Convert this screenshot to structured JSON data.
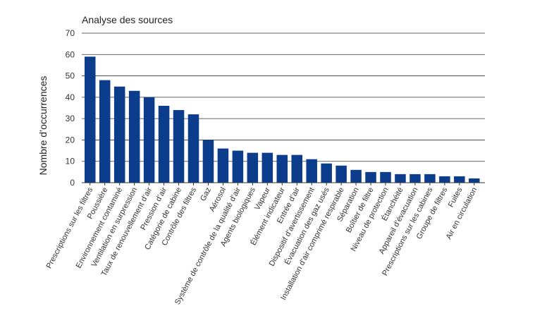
{
  "chart_data": {
    "type": "bar",
    "title": "Analyse des sources",
    "ylabel": "Nombre d’occurrences",
    "xlabel": "",
    "ylim": [
      0,
      70
    ],
    "yticks": [
      0,
      10,
      20,
      30,
      40,
      50,
      60,
      70
    ],
    "grid": true,
    "color": "#0b3d8c",
    "categories": [
      "Prescriptions sur les filtres",
      "Poussière",
      "Environnement contaminé",
      "Ventilation en surpression",
      "Taux de renouvellement d’air",
      "Pression d’air",
      "Catégorie de cabine",
      "Contrôle des filtres",
      "Gaz",
      "Aérosol",
      "Système de contrôle de la qualité d’air",
      "Agents biologiques",
      "Vapeur",
      "Élément indicateur",
      "Entrée d’air",
      "Dispositif d’avertissement",
      "Évacuation des gaz usés",
      "Installation d’air comprimé respirable",
      "Séparation",
      "Boîtier de filtre",
      "Niveau de protection",
      "Étanchéité",
      "Appareil d’évacuation",
      "Prescriptions sur les cabines",
      "Groupe de filtres",
      "Fuites",
      "Air en circulation"
    ],
    "values": [
      59,
      48,
      45,
      43,
      40,
      36,
      34,
      32,
      20,
      16,
      15,
      14,
      14,
      13,
      13,
      11,
      9,
      8,
      6,
      5,
      5,
      4,
      4,
      4,
      3,
      3,
      2
    ]
  }
}
